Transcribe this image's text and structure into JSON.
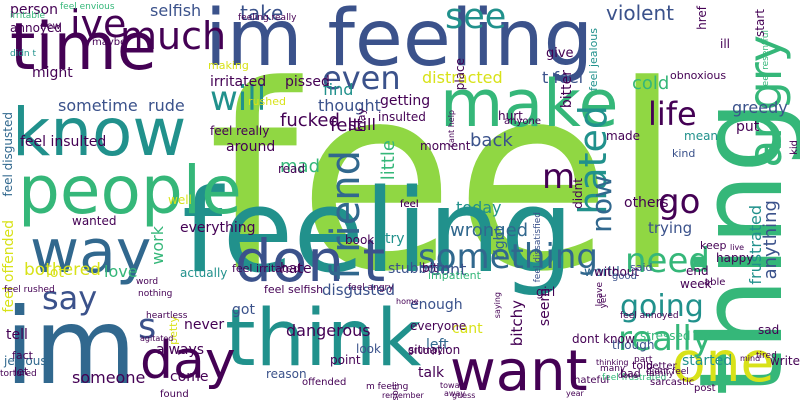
{
  "palette": {
    "purple": "#440154",
    "indigo": "#3b528b",
    "blue": "#31688e",
    "teal": "#21918c",
    "green": "#35b779",
    "lime": "#90d743",
    "yellow": "#d8e219",
    "background": "#ffffff"
  },
  "words": [
    {
      "text": "feel",
      "color": "lime"
    },
    {
      "text": "feeling",
      "color": "teal"
    },
    {
      "text": "im feeling",
      "color": "indigo"
    },
    {
      "text": "im",
      "color": "blue"
    },
    {
      "text": "time",
      "color": "purple"
    },
    {
      "text": "know",
      "color": "teal"
    },
    {
      "text": "people",
      "color": "green"
    },
    {
      "text": "make",
      "color": "green"
    },
    {
      "text": "think",
      "color": "teal"
    },
    {
      "text": "way",
      "color": "blue"
    },
    {
      "text": "thing",
      "color": "green"
    },
    {
      "text": "want",
      "color": "purple"
    },
    {
      "text": "day",
      "color": "purple"
    },
    {
      "text": "one",
      "color": "yellow"
    },
    {
      "text": "don t",
      "color": "indigo"
    },
    {
      "text": "angry",
      "color": "green"
    },
    {
      "text": "much",
      "color": "purple"
    },
    {
      "text": "ive",
      "color": "purple"
    },
    {
      "text": "see",
      "color": "teal"
    },
    {
      "text": "even",
      "color": "indigo"
    },
    {
      "text": "life",
      "color": "purple"
    },
    {
      "text": "will",
      "color": "teal"
    },
    {
      "text": "something",
      "color": "blue"
    },
    {
      "text": "hated",
      "color": "teal"
    },
    {
      "text": "f riend",
      "color": "blue"
    },
    {
      "text": "m",
      "color": "purple"
    },
    {
      "text": "now",
      "color": "blue"
    },
    {
      "text": "go",
      "color": "purple"
    },
    {
      "text": "need",
      "color": "green"
    },
    {
      "text": "going",
      "color": "teal"
    },
    {
      "text": "really",
      "color": "green"
    },
    {
      "text": "say",
      "color": "indigo"
    },
    {
      "text": "s",
      "color": "indigo"
    },
    {
      "text": "selfish",
      "color": "indigo"
    },
    {
      "text": "take",
      "color": "indigo"
    },
    {
      "text": "felt",
      "color": "purple"
    },
    {
      "text": "violent",
      "color": "indigo"
    },
    {
      "text": "person",
      "color": "purple"
    },
    {
      "text": "feel envious",
      "color": "green"
    },
    {
      "text": "annoyed",
      "color": "purple"
    },
    {
      "text": "irritable",
      "color": "green"
    },
    {
      "text": "didn t",
      "color": "teal"
    },
    {
      "text": "might",
      "color": "purple"
    },
    {
      "text": "feel jealous",
      "color": "teal"
    },
    {
      "text": "distracted",
      "color": "yellow"
    },
    {
      "text": "t feel",
      "color": "indigo"
    },
    {
      "text": "thought",
      "color": "indigo"
    },
    {
      "text": "find",
      "color": "teal"
    },
    {
      "text": "cold",
      "color": "green"
    },
    {
      "text": "sometime",
      "color": "indigo"
    },
    {
      "text": "rude",
      "color": "indigo"
    },
    {
      "text": "irritated",
      "color": "purple"
    },
    {
      "text": "pissed",
      "color": "purple"
    },
    {
      "text": "fucked",
      "color": "purple"
    },
    {
      "text": "still",
      "color": "purple"
    },
    {
      "text": "little",
      "color": "green"
    },
    {
      "text": "back",
      "color": "indigo"
    },
    {
      "text": "getting",
      "color": "purple"
    },
    {
      "text": "made",
      "color": "purple"
    },
    {
      "text": "mean",
      "color": "teal"
    },
    {
      "text": "kind",
      "color": "indigo"
    },
    {
      "text": "put",
      "color": "purple"
    },
    {
      "text": "greedy",
      "color": "indigo"
    },
    {
      "text": "obnoxious",
      "color": "purple"
    },
    {
      "text": "wronged",
      "color": "blue"
    },
    {
      "text": "today",
      "color": "teal"
    },
    {
      "text": "feel insulted",
      "color": "purple"
    },
    {
      "text": "feel really",
      "color": "purple"
    },
    {
      "text": "mad",
      "color": "green"
    },
    {
      "text": "read",
      "color": "purple"
    },
    {
      "text": "around",
      "color": "purple"
    },
    {
      "text": "feel disgusted",
      "color": "blue"
    },
    {
      "text": "bothered",
      "color": "yellow"
    },
    {
      "text": "love",
      "color": "green"
    },
    {
      "text": "work",
      "color": "green"
    },
    {
      "text": "hate",
      "color": "purple"
    },
    {
      "text": "everything",
      "color": "purple"
    },
    {
      "text": "book",
      "color": "purple"
    },
    {
      "text": "try",
      "color": "teal"
    },
    {
      "text": "stubborn",
      "color": "indigo"
    },
    {
      "text": "bit",
      "color": "purple"
    },
    {
      "text": "dont",
      "color": "indigo"
    },
    {
      "text": "right",
      "color": "blue"
    },
    {
      "text": "world",
      "color": "blue"
    },
    {
      "text": "trying",
      "color": "indigo"
    },
    {
      "text": "anything",
      "color": "indigo"
    },
    {
      "text": "end",
      "color": "purple"
    },
    {
      "text": "frustrated",
      "color": "teal"
    },
    {
      "text": "stressed",
      "color": "green"
    },
    {
      "text": "dangerous",
      "color": "purple"
    },
    {
      "text": "disgusted",
      "color": "indigo"
    },
    {
      "text": "left",
      "color": "blue"
    },
    {
      "text": "cant",
      "color": "yellow"
    },
    {
      "text": "bitchy",
      "color": "purple"
    },
    {
      "text": "though",
      "color": "indigo"
    },
    {
      "text": "started",
      "color": "teal"
    },
    {
      "text": "got",
      "color": "indigo"
    },
    {
      "text": "never",
      "color": "purple"
    },
    {
      "text": "always",
      "color": "purple"
    },
    {
      "text": "petty",
      "color": "yellow"
    },
    {
      "text": "look",
      "color": "indigo"
    },
    {
      "text": "come",
      "color": "purple"
    },
    {
      "text": "someone",
      "color": "purple"
    },
    {
      "text": "tell",
      "color": "purple"
    },
    {
      "text": "feel offended",
      "color": "yellow"
    },
    {
      "text": "lot",
      "color": "yellow"
    },
    {
      "text": "wanted",
      "color": "purple"
    },
    {
      "text": "well",
      "color": "yellow"
    },
    {
      "text": "actually",
      "color": "teal"
    },
    {
      "text": "jealous",
      "color": "blue"
    },
    {
      "text": "tortured",
      "color": "purple"
    },
    {
      "text": "let",
      "color": "purple"
    },
    {
      "text": "fact",
      "color": "purple"
    },
    {
      "text": "sad",
      "color": "purple"
    },
    {
      "text": "tired",
      "color": "purple"
    },
    {
      "text": "write",
      "color": "purple"
    },
    {
      "text": "many",
      "color": "purple"
    },
    {
      "text": "feel frustrated",
      "color": "green"
    },
    {
      "text": "didnt feel",
      "color": "purple"
    },
    {
      "text": "feel annoyed",
      "color": "purple"
    },
    {
      "text": "feel angry",
      "color": "purple"
    },
    {
      "text": "feel selfish",
      "color": "purple"
    },
    {
      "text": "feel irritated",
      "color": "purple"
    },
    {
      "text": "feel rushed",
      "color": "purple"
    },
    {
      "text": "feel resentful",
      "color": "green"
    },
    {
      "text": "feel dissatisfied",
      "color": "indigo"
    },
    {
      "text": "feeling really",
      "color": "purple"
    },
    {
      "text": "girl",
      "color": "purple"
    },
    {
      "text": "seem",
      "color": "purple"
    },
    {
      "text": "talk",
      "color": "purple"
    },
    {
      "text": "point",
      "color": "purple"
    },
    {
      "text": "reason",
      "color": "indigo"
    },
    {
      "text": "enough",
      "color": "indigo"
    },
    {
      "text": "everyone",
      "color": "purple"
    },
    {
      "text": "dont know",
      "color": "purple"
    },
    {
      "text": "without",
      "color": "purple"
    },
    {
      "text": "week",
      "color": "purple"
    },
    {
      "text": "able",
      "color": "purple"
    },
    {
      "text": "happy",
      "color": "purple"
    },
    {
      "text": "keep",
      "color": "purple"
    },
    {
      "text": "others",
      "color": "purple"
    },
    {
      "text": "didnt",
      "color": "purple"
    },
    {
      "text": "said",
      "color": "indigo"
    },
    {
      "text": "good",
      "color": "indigo"
    },
    {
      "text": "moment",
      "color": "purple"
    },
    {
      "text": "impatient",
      "color": "green"
    },
    {
      "text": "hurt",
      "color": "purple"
    },
    {
      "text": "give",
      "color": "purple"
    },
    {
      "text": "href",
      "color": "purple"
    },
    {
      "text": "ill",
      "color": "purple"
    },
    {
      "text": "start",
      "color": "purple"
    },
    {
      "text": "bitter",
      "color": "purple"
    },
    {
      "text": "may",
      "color": "purple"
    },
    {
      "text": "rushed",
      "color": "yellow"
    },
    {
      "text": "making",
      "color": "yellow"
    },
    {
      "text": "new",
      "color": "purple"
    },
    {
      "text": "maybe",
      "color": "purple"
    },
    {
      "text": "word",
      "color": "purple"
    },
    {
      "text": "nothing",
      "color": "purple"
    },
    {
      "text": "heartless",
      "color": "purple"
    },
    {
      "text": "agitated",
      "color": "purple"
    },
    {
      "text": "situation",
      "color": "purple"
    },
    {
      "text": "grumpy",
      "color": "purple"
    },
    {
      "text": "insulted",
      "color": "purple"
    },
    {
      "text": "place",
      "color": "purple"
    },
    {
      "text": "cant help",
      "color": "purple"
    },
    {
      "text": "anyone",
      "color": "purple"
    },
    {
      "text": "told",
      "color": "purple"
    },
    {
      "text": "bad",
      "color": "purple"
    },
    {
      "text": "year",
      "color": "purple"
    },
    {
      "text": "part",
      "color": "purple"
    },
    {
      "text": "done",
      "color": "purple"
    },
    {
      "text": "thinking",
      "color": "purple"
    },
    {
      "text": "family",
      "color": "purple"
    },
    {
      "text": "better",
      "color": "purple"
    },
    {
      "text": "hateful",
      "color": "purple"
    },
    {
      "text": "sarcastic",
      "color": "purple"
    },
    {
      "text": "post",
      "color": "purple"
    },
    {
      "text": "live",
      "color": "purple"
    },
    {
      "text": "kid",
      "color": "purple"
    },
    {
      "text": "mind",
      "color": "purple"
    },
    {
      "text": "found",
      "color": "purple"
    },
    {
      "text": "offended",
      "color": "purple"
    },
    {
      "text": "m feeling",
      "color": "purple"
    },
    {
      "text": "remember",
      "color": "purple"
    },
    {
      "text": "sort",
      "color": "purple"
    },
    {
      "text": "home",
      "color": "purple"
    },
    {
      "text": "saying",
      "color": "purple"
    },
    {
      "text": "leave",
      "color": "purple"
    },
    {
      "text": "yet",
      "color": "purple"
    },
    {
      "text": "toward",
      "color": "purple"
    },
    {
      "text": "away",
      "color": "purple"
    },
    {
      "text": "guess",
      "color": "purple"
    },
    {
      "text": "feel",
      "color": "purple"
    },
    {
      "text": "feel",
      "color": "purple"
    }
  ]
}
